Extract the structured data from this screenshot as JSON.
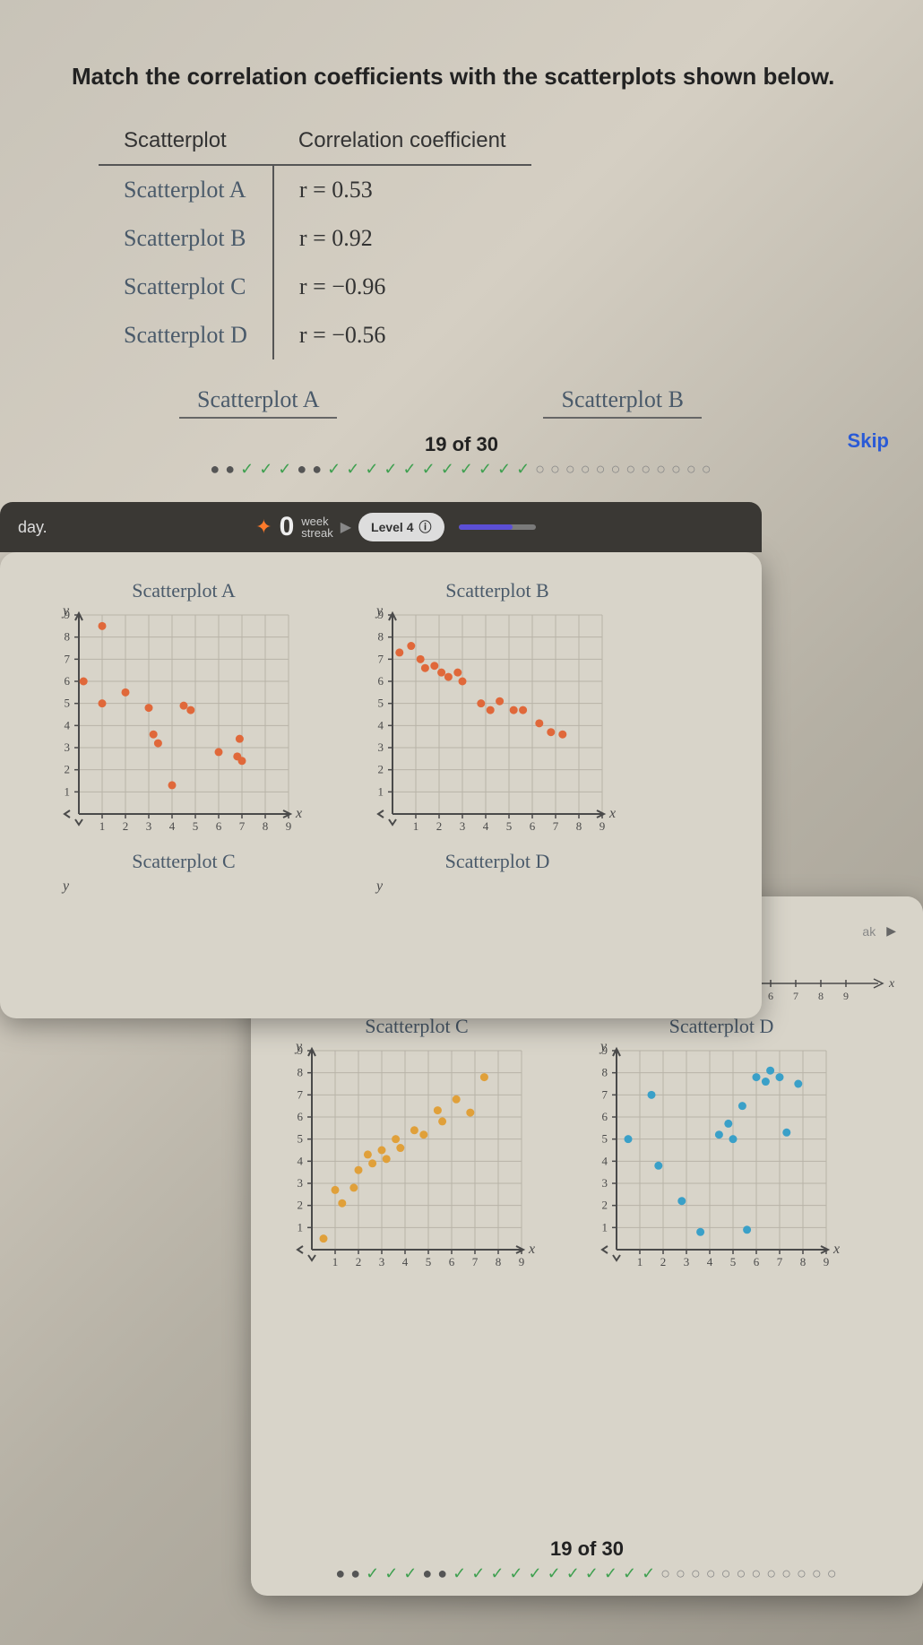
{
  "question": {
    "title": "Match the correlation coefficients with the scatterplots shown below.",
    "columns": [
      "Scatterplot",
      "Correlation coefficient"
    ],
    "rows": [
      {
        "label": "Scatterplot A",
        "coef": "r = 0.53"
      },
      {
        "label": "Scatterplot B",
        "coef": "r = 0.92"
      },
      {
        "label": "Scatterplot C",
        "coef": "r = −0.96"
      },
      {
        "label": "Scatterplot D",
        "coef": "r = −0.56"
      }
    ],
    "row_labels_bottom": [
      "Scatterplot A",
      "Scatterplot B"
    ]
  },
  "progress": {
    "label": "19 of 30",
    "skip": "Skip",
    "dots": [
      "filled",
      "filled",
      "check",
      "check",
      "check",
      "filled",
      "filled",
      "check",
      "check",
      "check",
      "check",
      "check",
      "check",
      "check",
      "check",
      "check",
      "check",
      "check",
      "empty",
      "empty",
      "empty",
      "empty",
      "empty",
      "empty",
      "empty",
      "empty",
      "empty",
      "empty",
      "empty",
      "empty"
    ]
  },
  "status": {
    "day": "day.",
    "streak_count": "0",
    "streak_label_top": "week",
    "streak_label_bottom": "streak",
    "level_label": "Level 4",
    "level_progress_pct": 70
  },
  "plot_style": {
    "axis_color": "#4a4a4a",
    "grid_color": "#b8b3a8",
    "bg_color": "#d8d4c9",
    "tick_fontsize": 13,
    "label_color": "#4a4a4a",
    "x_label": "x",
    "y_label": "y",
    "xlim": [
      0,
      9
    ],
    "ylim": [
      0,
      9
    ],
    "x_ticks": [
      1,
      2,
      3,
      4,
      5,
      6,
      7,
      8,
      9
    ],
    "y_ticks": [
      1,
      2,
      3,
      4,
      5,
      6,
      7,
      8,
      9
    ],
    "point_radius": 4.5
  },
  "plots_card1": [
    {
      "title": "Scatterplot A",
      "point_color": "#e0683a",
      "points": [
        [
          0.2,
          6
        ],
        [
          1,
          8.5
        ],
        [
          1,
          5
        ],
        [
          2,
          5.5
        ],
        [
          3,
          4.8
        ],
        [
          3.2,
          3.6
        ],
        [
          3.4,
          3.2
        ],
        [
          4.5,
          4.9
        ],
        [
          4.8,
          4.7
        ],
        [
          4,
          1.3
        ],
        [
          6,
          2.8
        ],
        [
          6.8,
          2.6
        ],
        [
          6.9,
          3.4
        ],
        [
          7,
          2.4
        ]
      ]
    },
    {
      "title": "Scatterplot B",
      "point_color": "#e0683a",
      "points": [
        [
          0.3,
          7.3
        ],
        [
          0.8,
          7.6
        ],
        [
          1.2,
          7
        ],
        [
          1.4,
          6.6
        ],
        [
          1.8,
          6.7
        ],
        [
          2.1,
          6.4
        ],
        [
          2.4,
          6.2
        ],
        [
          2.8,
          6.4
        ],
        [
          3.0,
          6.0
        ],
        [
          3.8,
          5
        ],
        [
          4.2,
          4.7
        ],
        [
          4.6,
          5.1
        ],
        [
          5.2,
          4.7
        ],
        [
          5.6,
          4.7
        ],
        [
          6.3,
          4.1
        ],
        [
          6.8,
          3.7
        ],
        [
          7.3,
          3.6
        ]
      ]
    }
  ],
  "plots_card1_bottom_titles": [
    "Scatterplot C",
    "Scatterplot D"
  ],
  "plots_card2": [
    {
      "title": "Scatterplot C",
      "point_color": "#e0a03a",
      "points": [
        [
          0.5,
          0.5
        ],
        [
          1,
          2.7
        ],
        [
          1.3,
          2.1
        ],
        [
          1.8,
          2.8
        ],
        [
          2.0,
          3.6
        ],
        [
          2.4,
          4.3
        ],
        [
          2.6,
          3.9
        ],
        [
          3.0,
          4.5
        ],
        [
          3.2,
          4.1
        ],
        [
          3.6,
          5.0
        ],
        [
          3.8,
          4.6
        ],
        [
          4.4,
          5.4
        ],
        [
          4.8,
          5.2
        ],
        [
          5.4,
          6.3
        ],
        [
          5.6,
          5.8
        ],
        [
          6.2,
          6.8
        ],
        [
          6.8,
          6.2
        ],
        [
          7.4,
          7.8
        ]
      ]
    },
    {
      "title": "Scatterplot D",
      "point_color": "#3aa0c8",
      "points": [
        [
          0.5,
          5
        ],
        [
          1.5,
          7
        ],
        [
          1.8,
          3.8
        ],
        [
          2.8,
          2.2
        ],
        [
          3.6,
          0.8
        ],
        [
          4.4,
          5.2
        ],
        [
          4.8,
          5.7
        ],
        [
          5.0,
          5.0
        ],
        [
          5.4,
          6.5
        ],
        [
          5.6,
          0.9
        ],
        [
          6.0,
          7.8
        ],
        [
          6.4,
          7.6
        ],
        [
          6.6,
          8.1
        ],
        [
          7.0,
          7.8
        ],
        [
          7.3,
          5.3
        ],
        [
          7.8,
          7.5
        ]
      ]
    }
  ]
}
